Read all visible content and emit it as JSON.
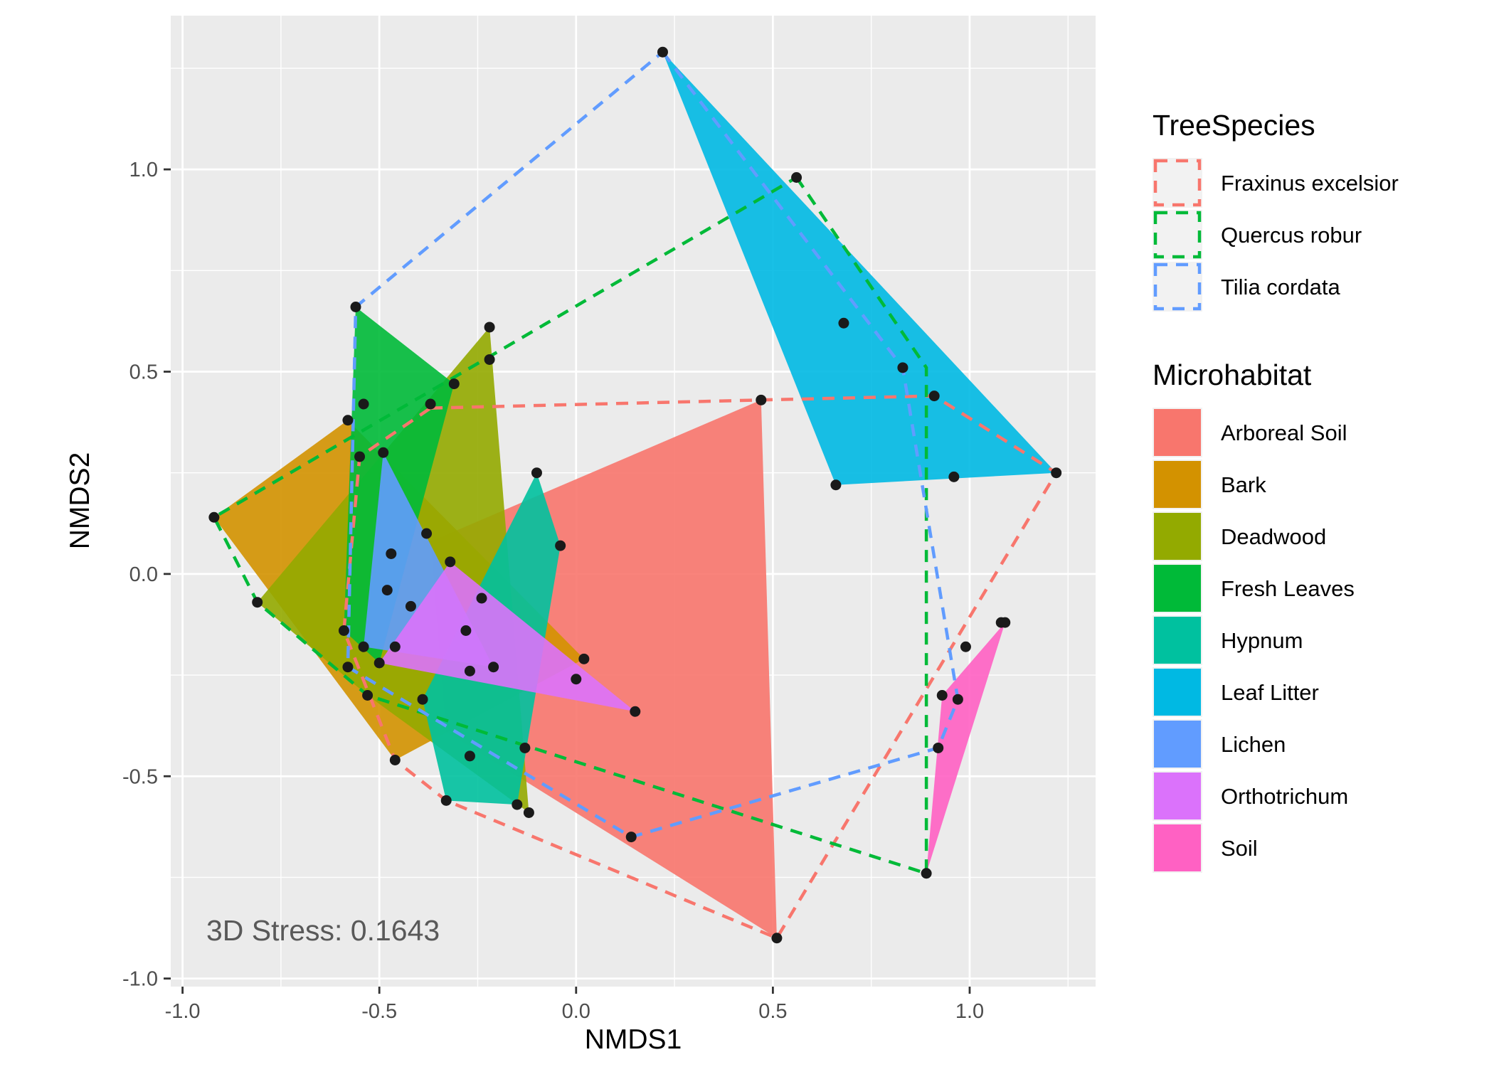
{
  "chart_data": {
    "type": "scatter",
    "xlabel": "NMDS1",
    "ylabel": "NMDS2",
    "xlim": [
      -1.03,
      1.32
    ],
    "ylim": [
      -1.02,
      1.38
    ],
    "x_ticks": [
      -1.0,
      -0.5,
      0.0,
      0.5,
      1.0
    ],
    "x_tick_labels": [
      "-1.0",
      "-0.5",
      "0.0",
      "0.5",
      "1.0"
    ],
    "y_ticks": [
      -1.0,
      -0.5,
      0.0,
      0.5,
      1.0
    ],
    "y_tick_labels": [
      "-1.0",
      "-0.5",
      "0.0",
      "0.5",
      "1.0"
    ],
    "grid": true,
    "legend_placement": "right",
    "annotation": "3D Stress: 0.1643",
    "points": [
      [
        0.22,
        1.29
      ],
      [
        0.56,
        0.98
      ],
      [
        0.68,
        0.62
      ],
      [
        0.83,
        0.51
      ],
      [
        0.91,
        0.44
      ],
      [
        1.22,
        0.25
      ],
      [
        0.96,
        0.24
      ],
      [
        0.66,
        0.22
      ],
      [
        0.47,
        0.43
      ],
      [
        -0.56,
        0.66
      ],
      [
        -0.22,
        0.61
      ],
      [
        -0.22,
        0.53
      ],
      [
        -0.31,
        0.47
      ],
      [
        -0.37,
        0.42
      ],
      [
        -0.54,
        0.42
      ],
      [
        -0.58,
        0.38
      ],
      [
        -0.55,
        0.29
      ],
      [
        -0.49,
        0.3
      ],
      [
        -0.92,
        0.14
      ],
      [
        -0.81,
        -0.07
      ],
      [
        -0.1,
        0.25
      ],
      [
        -0.04,
        0.07
      ],
      [
        -0.38,
        0.1
      ],
      [
        -0.47,
        0.05
      ],
      [
        -0.32,
        0.03
      ],
      [
        -0.48,
        -0.04
      ],
      [
        -0.42,
        -0.08
      ],
      [
        -0.24,
        -0.06
      ],
      [
        -0.28,
        -0.14
      ],
      [
        -0.59,
        -0.14
      ],
      [
        -0.54,
        -0.18
      ],
      [
        -0.46,
        -0.18
      ],
      [
        -0.5,
        -0.22
      ],
      [
        -0.58,
        -0.23
      ],
      [
        -0.27,
        -0.24
      ],
      [
        -0.21,
        -0.23
      ],
      [
        0.02,
        -0.21
      ],
      [
        0.0,
        -0.26
      ],
      [
        -0.53,
        -0.3
      ],
      [
        -0.39,
        -0.31
      ],
      [
        0.15,
        -0.34
      ],
      [
        -0.13,
        -0.43
      ],
      [
        -0.27,
        -0.45
      ],
      [
        -0.46,
        -0.46
      ],
      [
        -0.33,
        -0.56
      ],
      [
        -0.15,
        -0.57
      ],
      [
        -0.12,
        -0.59
      ],
      [
        0.14,
        -0.65
      ],
      [
        0.51,
        -0.9
      ],
      [
        0.89,
        -0.74
      ],
      [
        0.92,
        -0.43
      ],
      [
        0.93,
        -0.3
      ],
      [
        0.97,
        -0.31
      ],
      [
        0.99,
        -0.18
      ],
      [
        1.08,
        -0.12
      ],
      [
        1.09,
        -0.12
      ]
    ],
    "microhabitat_hulls": [
      {
        "name": "Arboreal Soil",
        "color": "#F8766D",
        "polygon": [
          [
            0.47,
            0.43
          ],
          [
            0.51,
            -0.9
          ],
          [
            -0.33,
            -0.39
          ],
          [
            -0.37,
            0.08
          ]
        ]
      },
      {
        "name": "Bark",
        "color": "#D39200",
        "polygon": [
          [
            -0.92,
            0.14
          ],
          [
            -0.58,
            0.38
          ],
          [
            0.02,
            -0.21
          ],
          [
            -0.46,
            -0.46
          ]
        ]
      },
      {
        "name": "Deadwood",
        "color": "#93AA00",
        "polygon": [
          [
            -0.81,
            -0.07
          ],
          [
            -0.22,
            0.61
          ],
          [
            -0.12,
            -0.59
          ],
          [
            -0.53,
            -0.3
          ]
        ]
      },
      {
        "name": "Fresh Leaves",
        "color": "#00BA38",
        "polygon": [
          [
            -0.56,
            0.66
          ],
          [
            -0.31,
            0.47
          ],
          [
            -0.5,
            -0.22
          ],
          [
            -0.59,
            -0.14
          ]
        ]
      },
      {
        "name": "Hypnum",
        "color": "#00C19F",
        "polygon": [
          [
            -0.1,
            0.25
          ],
          [
            -0.04,
            0.07
          ],
          [
            -0.15,
            -0.57
          ],
          [
            -0.33,
            -0.56
          ],
          [
            -0.39,
            -0.31
          ]
        ]
      },
      {
        "name": "Leaf Litter",
        "color": "#00B9E3",
        "polygon": [
          [
            0.22,
            1.29
          ],
          [
            1.22,
            0.25
          ],
          [
            0.66,
            0.22
          ]
        ]
      },
      {
        "name": "Lichen",
        "color": "#619CFF",
        "polygon": [
          [
            -0.49,
            0.3
          ],
          [
            -0.21,
            -0.23
          ],
          [
            -0.54,
            -0.18
          ]
        ]
      },
      {
        "name": "Orthotrichum",
        "color": "#DB72FB",
        "polygon": [
          [
            -0.32,
            0.03
          ],
          [
            0.15,
            -0.34
          ],
          [
            -0.5,
            -0.22
          ]
        ]
      },
      {
        "name": "Soil",
        "color": "#FF61C3",
        "polygon": [
          [
            1.09,
            -0.12
          ],
          [
            0.89,
            -0.74
          ],
          [
            0.93,
            -0.3
          ]
        ]
      }
    ],
    "tree_species_hulls": [
      {
        "name": "Fraxinus excelsior",
        "color": "#F8766D",
        "polygon": [
          [
            -0.37,
            0.41
          ],
          [
            0.47,
            0.43
          ],
          [
            0.91,
            0.44
          ],
          [
            1.22,
            0.25
          ],
          [
            0.51,
            -0.9
          ],
          [
            -0.33,
            -0.56
          ],
          [
            -0.46,
            -0.46
          ],
          [
            -0.59,
            -0.14
          ],
          [
            -0.55,
            0.29
          ]
        ]
      },
      {
        "name": "Quercus robur",
        "color": "#00BA38",
        "polygon": [
          [
            0.56,
            0.98
          ],
          [
            0.89,
            0.51
          ],
          [
            0.89,
            -0.74
          ],
          [
            -0.53,
            -0.3
          ],
          [
            -0.81,
            -0.07
          ],
          [
            -0.92,
            0.14
          ]
        ]
      },
      {
        "name": "Tilia cordata",
        "color": "#619CFF",
        "polygon": [
          [
            0.22,
            1.29
          ],
          [
            0.83,
            0.51
          ],
          [
            0.97,
            -0.31
          ],
          [
            0.92,
            -0.43
          ],
          [
            0.14,
            -0.65
          ],
          [
            -0.58,
            -0.23
          ],
          [
            -0.56,
            0.66
          ]
        ]
      }
    ],
    "legends": [
      {
        "title": "TreeSpecies",
        "style": "dashed-outline",
        "entries": [
          {
            "label": "Fraxinus excelsior",
            "color": "#F8766D"
          },
          {
            "label": "Quercus robur",
            "color": "#00BA38"
          },
          {
            "label": "Tilia cordata",
            "color": "#619CFF"
          }
        ]
      },
      {
        "title": "Microhabitat",
        "style": "filled",
        "entries": [
          {
            "label": "Arboreal Soil",
            "color": "#F8766D"
          },
          {
            "label": "Bark",
            "color": "#D39200"
          },
          {
            "label": "Deadwood",
            "color": "#93AA00"
          },
          {
            "label": "Fresh Leaves",
            "color": "#00BA38"
          },
          {
            "label": "Hypnum",
            "color": "#00C19F"
          },
          {
            "label": "Leaf Litter",
            "color": "#00B9E3"
          },
          {
            "label": "Lichen",
            "color": "#619CFF"
          },
          {
            "label": "Orthotrichum",
            "color": "#DB72FB"
          },
          {
            "label": "Soil",
            "color": "#FF61C3"
          }
        ]
      }
    ],
    "panel_background": "#EBEBEB",
    "grid_color": "#FFFFFF",
    "point_color": "#1A1A1A"
  }
}
